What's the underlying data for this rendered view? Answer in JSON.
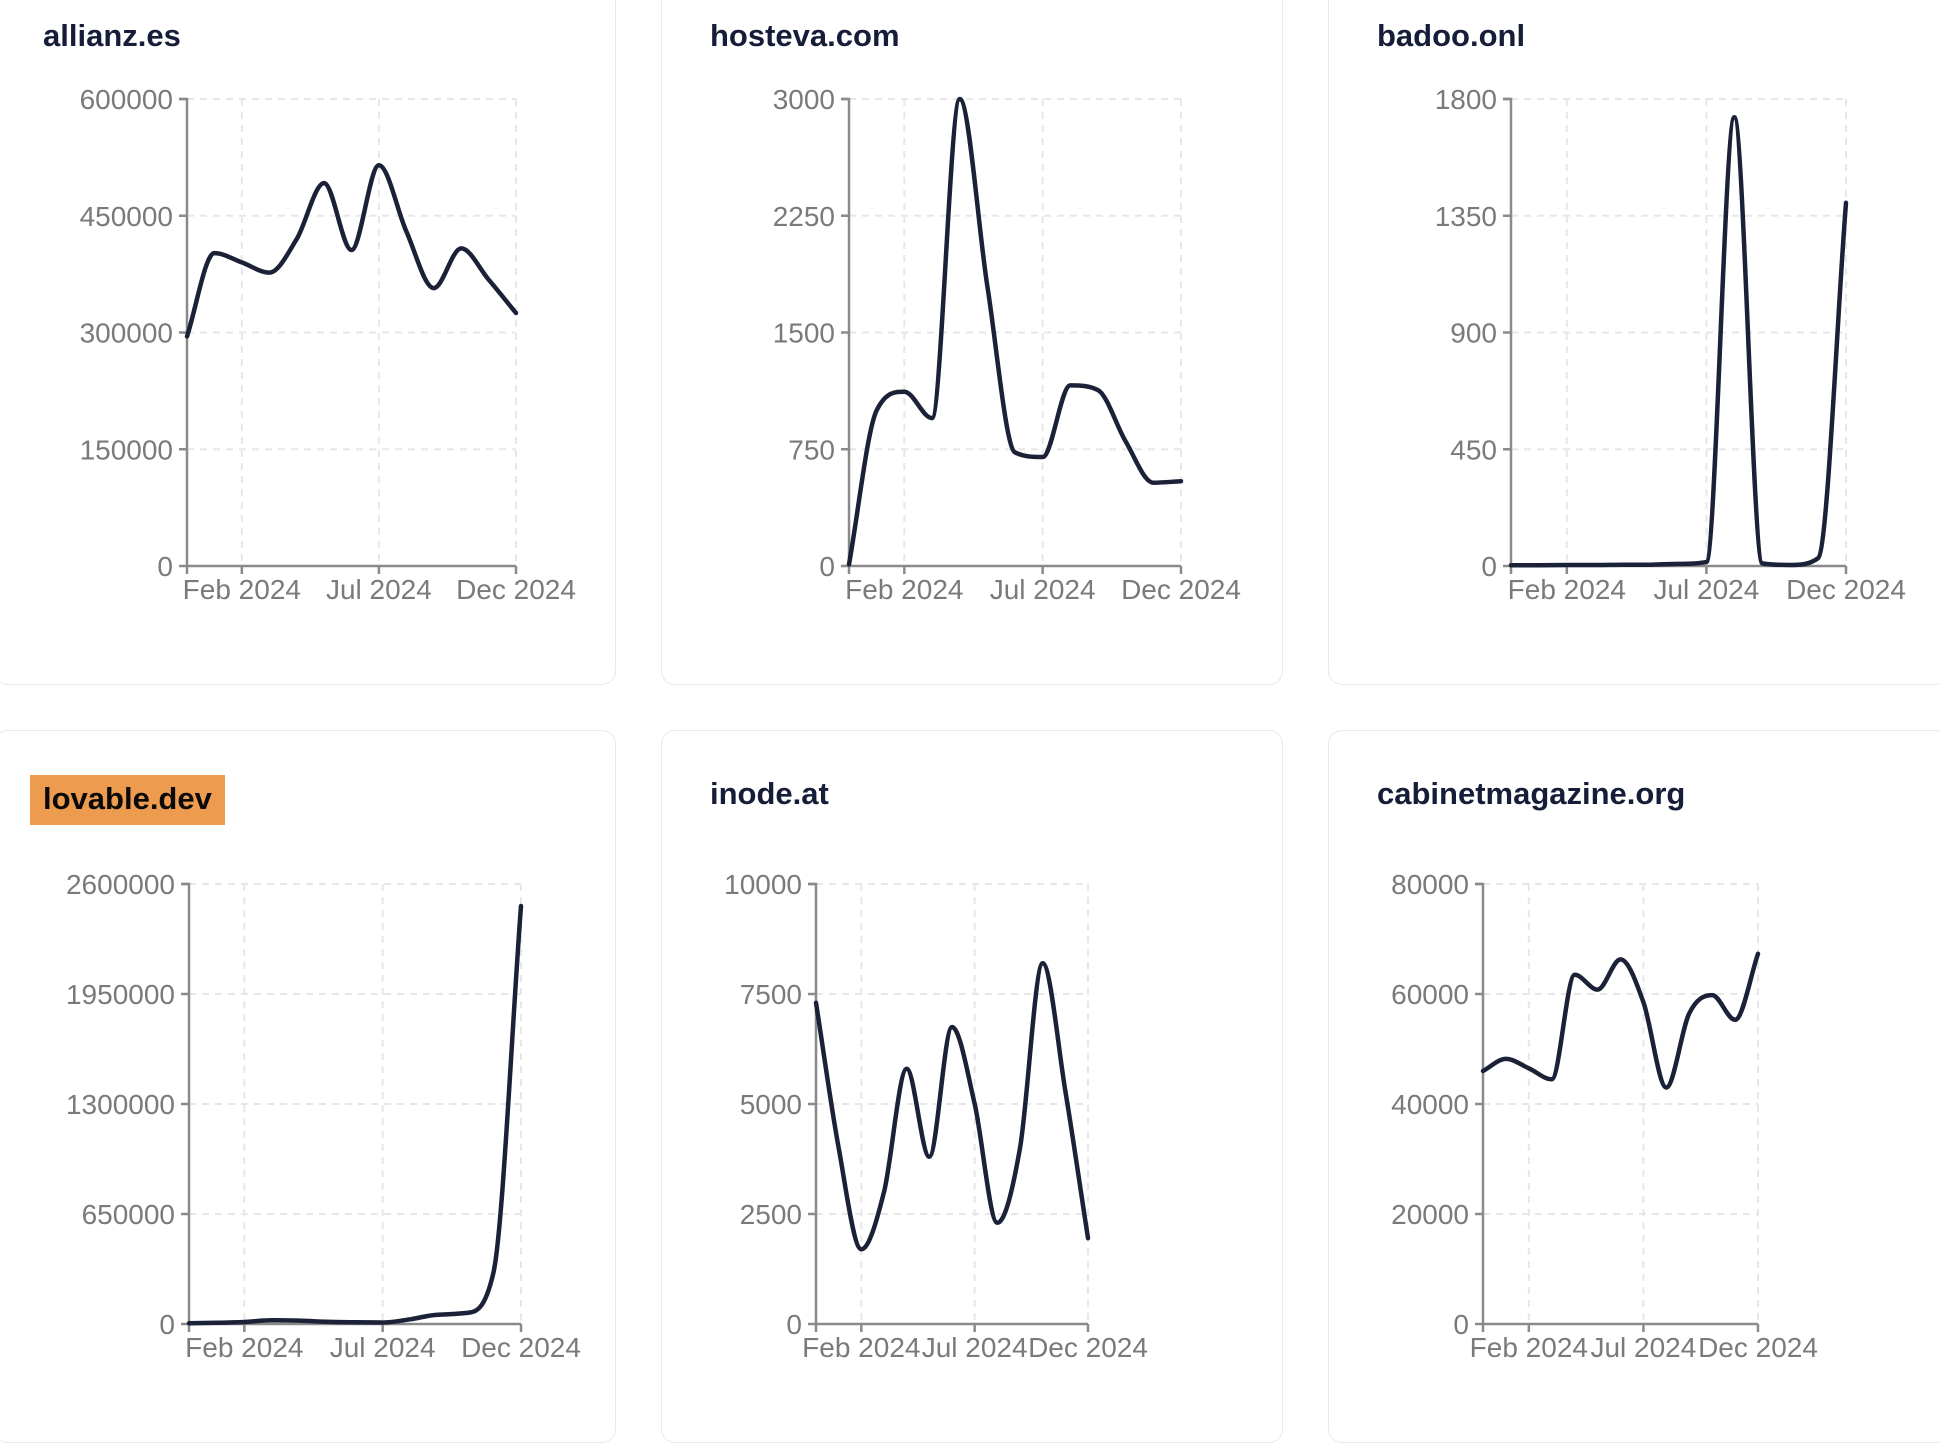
{
  "styles": {
    "page_bg": "#ffffff",
    "card_bg": "#ffffff",
    "card_border": "#e6e8f0",
    "title_color": "#151d38",
    "line_color": "#1b2137",
    "tick_color": "#7a7a7a",
    "axis_color": "#8a8a8a",
    "grid_color": "#e7e7e7",
    "highlight_bg": "#ed9b4e",
    "highlight_text": "#0a0a0a"
  },
  "chart_data": [
    {
      "type": "line",
      "title": "allianz.es",
      "highlighted": false,
      "x_range": [
        "Dec 2023",
        "Dec 2024"
      ],
      "x_ticks": [
        "Feb 2024",
        "Jul 2024",
        "Dec 2024"
      ],
      "x_tick_indices": [
        2,
        7,
        12
      ],
      "y_ticks": [
        0,
        150000,
        300000,
        450000,
        600000
      ],
      "ylim": [
        0,
        600000
      ],
      "grid": true,
      "values": [
        295000,
        402000,
        390000,
        377000,
        420000,
        492000,
        406000,
        515000,
        430000,
        357000,
        408000,
        368000,
        325000
      ]
    },
    {
      "type": "line",
      "title": "hosteva.com",
      "highlighted": false,
      "x_range": [
        "Dec 2023",
        "Dec 2024"
      ],
      "x_ticks": [
        "Feb 2024",
        "Jul 2024",
        "Dec 2024"
      ],
      "x_tick_indices": [
        2,
        7,
        12
      ],
      "y_ticks": [
        0,
        750,
        1500,
        2250,
        3000
      ],
      "ylim": [
        0,
        3000
      ],
      "grid": true,
      "values": [
        10,
        1000,
        1120,
        950,
        3000,
        1800,
        730,
        700,
        1160,
        1130,
        800,
        535,
        545
      ]
    },
    {
      "type": "line",
      "title": "badoo.onl",
      "highlighted": false,
      "x_range": [
        "Dec 2023",
        "Dec 2024"
      ],
      "x_ticks": [
        "Feb 2024",
        "Jul 2024",
        "Dec 2024"
      ],
      "x_tick_indices": [
        2,
        7,
        12
      ],
      "y_ticks": [
        0,
        450,
        900,
        1350,
        1800
      ],
      "ylim": [
        0,
        1800
      ],
      "grid": true,
      "values": [
        3,
        3,
        4,
        4,
        5,
        5,
        8,
        15,
        1730,
        10,
        4,
        30,
        1400
      ]
    },
    {
      "type": "line",
      "title": "lovable.dev",
      "highlighted": true,
      "x_range": [
        "Dec 2023",
        "Dec 2024"
      ],
      "x_ticks": [
        "Feb 2024",
        "Jul 2024",
        "Dec 2024"
      ],
      "x_tick_indices": [
        2,
        7,
        12
      ],
      "y_ticks": [
        0,
        650000,
        1300000,
        1950000,
        2600000
      ],
      "ylim": [
        0,
        2600000
      ],
      "grid": true,
      "values": [
        4000,
        7000,
        12000,
        22000,
        20000,
        13000,
        10000,
        9000,
        28000,
        55000,
        65000,
        300000,
        2470000
      ]
    },
    {
      "type": "line",
      "title": "inode.at",
      "highlighted": false,
      "x_range": [
        "Dec 2023",
        "Dec 2024"
      ],
      "x_ticks": [
        "Feb 2024",
        "Jul 2024",
        "Dec 2024"
      ],
      "x_tick_indices": [
        2,
        7,
        12
      ],
      "y_ticks": [
        0,
        2500,
        5000,
        7500,
        10000
      ],
      "ylim": [
        0,
        10000
      ],
      "grid": true,
      "values": [
        7300,
        4000,
        1700,
        3000,
        5800,
        3800,
        6750,
        5000,
        2300,
        4000,
        8200,
        5300,
        1950
      ]
    },
    {
      "type": "line",
      "title": "cabinetmagazine.org",
      "highlighted": false,
      "x_range": [
        "Dec 2023",
        "Dec 2024"
      ],
      "x_ticks": [
        "Feb 2024",
        "Jul 2024",
        "Dec 2024"
      ],
      "x_tick_indices": [
        2,
        7,
        12
      ],
      "y_ticks": [
        0,
        20000,
        40000,
        60000,
        80000
      ],
      "ylim": [
        0,
        80000
      ],
      "grid": true,
      "values": [
        46000,
        48200,
        46500,
        44500,
        63500,
        60800,
        66300,
        58500,
        43000,
        56500,
        59800,
        55300,
        67300
      ]
    }
  ]
}
